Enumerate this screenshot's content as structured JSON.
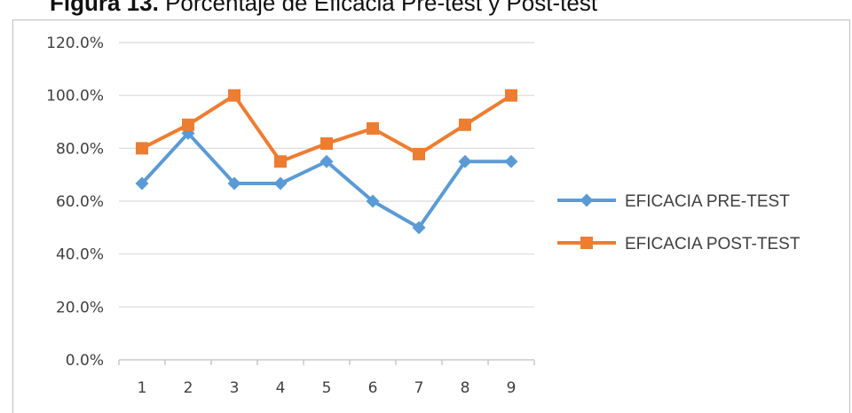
{
  "caption": {
    "prefix": "Figura 13.",
    "text": "Porcentaje de Eficacia Pre-test y Post-test"
  },
  "chart_data": {
    "type": "line",
    "x": [
      1,
      2,
      3,
      4,
      5,
      6,
      7,
      8,
      9
    ],
    "series": [
      {
        "name": "EFICACIA PRE-TEST",
        "color": "#5b9bd5",
        "marker": "diamond",
        "values": [
          0.667,
          0.857,
          0.667,
          0.667,
          0.75,
          0.6,
          0.5,
          0.75,
          0.75
        ]
      },
      {
        "name": "EFICACIA POST-TEST",
        "color": "#ed7d31",
        "marker": "square",
        "values": [
          0.8,
          0.889,
          1.0,
          0.75,
          0.818,
          0.875,
          0.778,
          0.889,
          1.0
        ]
      }
    ],
    "ylim": [
      0,
      1.2
    ],
    "yticks": [
      "0.0%",
      "20.0%",
      "40.0%",
      "60.0%",
      "80.0%",
      "100.0%",
      "120.0%"
    ],
    "xticks": [
      "1",
      "2",
      "3",
      "4",
      "5",
      "6",
      "7",
      "8",
      "9"
    ],
    "grid": "horizontal",
    "legend": "right",
    "title": "",
    "xlabel": "",
    "ylabel": ""
  }
}
